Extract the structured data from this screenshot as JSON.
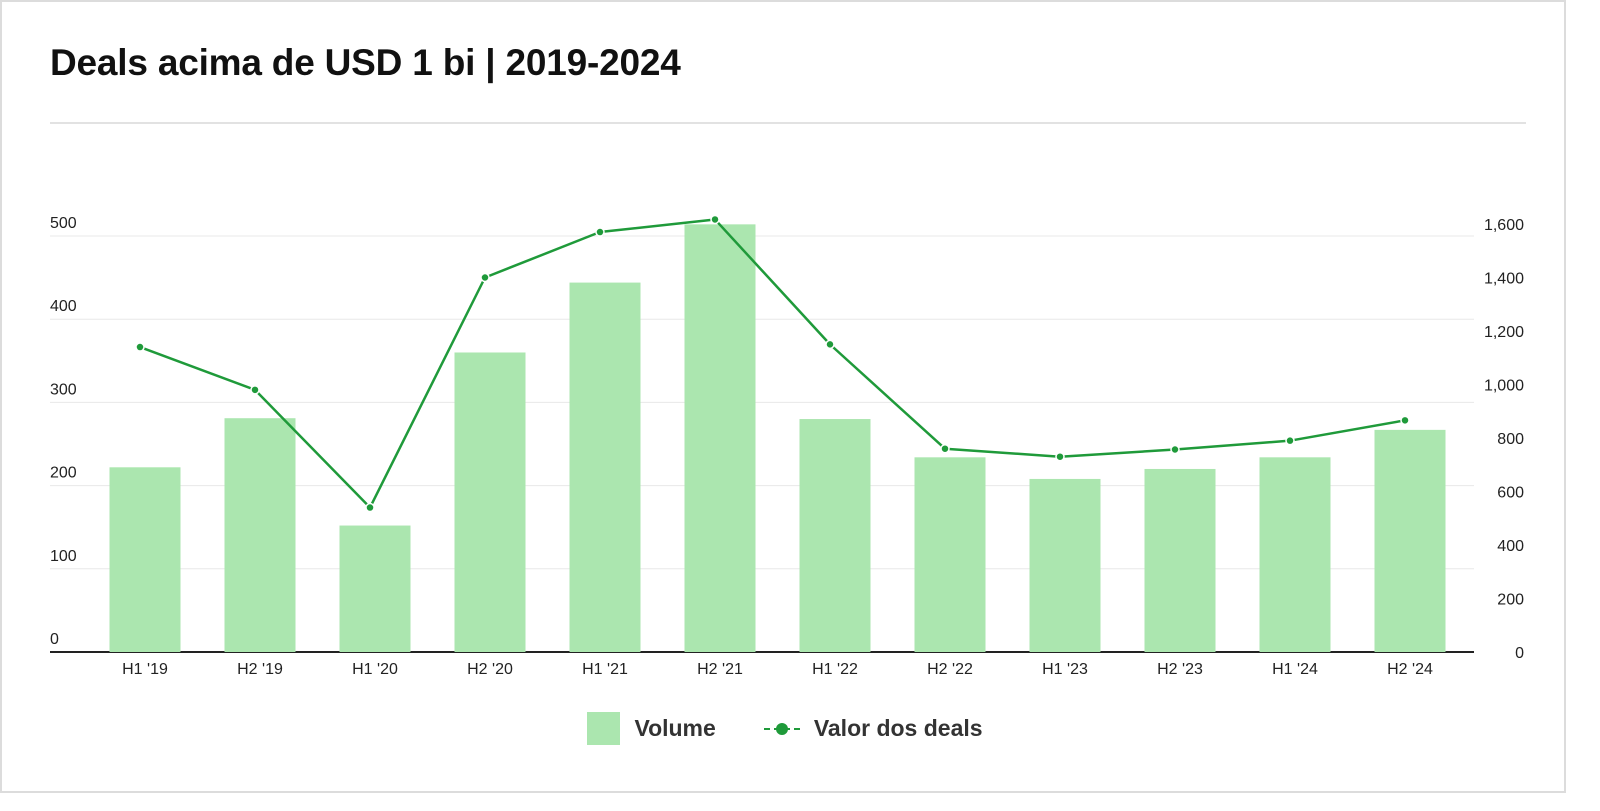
{
  "title": "Deals acima de USD 1 bi | 2019-2024",
  "colors": {
    "bar": "#abe6af",
    "line": "#1f9a3a",
    "grid": "#e8e8e8",
    "axis": "#222222"
  },
  "legend": {
    "bar_label": "Volume",
    "line_label": "Valor dos deals"
  },
  "chart_data": {
    "type": "bar+line",
    "categories": [
      "H1 '19",
      "H2 '19",
      "H1 '20",
      "H2 '20",
      "H1 '21",
      "H2 '21",
      "H1 '22",
      "H2 '22",
      "H1 '23",
      "H2 '23",
      "H1 '24",
      "H2 '24"
    ],
    "series": [
      {
        "name": "Volume",
        "type": "bar",
        "axis": "left",
        "values": [
          222,
          281,
          152,
          360,
          444,
          514,
          280,
          234,
          208,
          220,
          234,
          267
        ]
      },
      {
        "name": "Valor dos deals",
        "type": "line",
        "axis": "right",
        "values": [
          1140,
          980,
          540,
          1400,
          1570,
          1617,
          1150,
          760,
          730,
          757,
          790,
          866
        ]
      }
    ],
    "left_axis": {
      "min": 0,
      "max": 500,
      "ticks": [
        0,
        100,
        200,
        300,
        400,
        500
      ],
      "tick_labels": [
        "0",
        "100",
        "200",
        "300",
        "400",
        "500"
      ]
    },
    "right_axis": {
      "min": 0,
      "max": 1600,
      "ticks": [
        0,
        200,
        400,
        600,
        800,
        1000,
        1200,
        1400,
        1600
      ],
      "tick_labels": [
        "0",
        "200",
        "400",
        "600",
        "800",
        "1,000",
        "1,200",
        "1,400",
        "1,600"
      ]
    },
    "grid": true,
    "legend_position": "bottom-center"
  }
}
